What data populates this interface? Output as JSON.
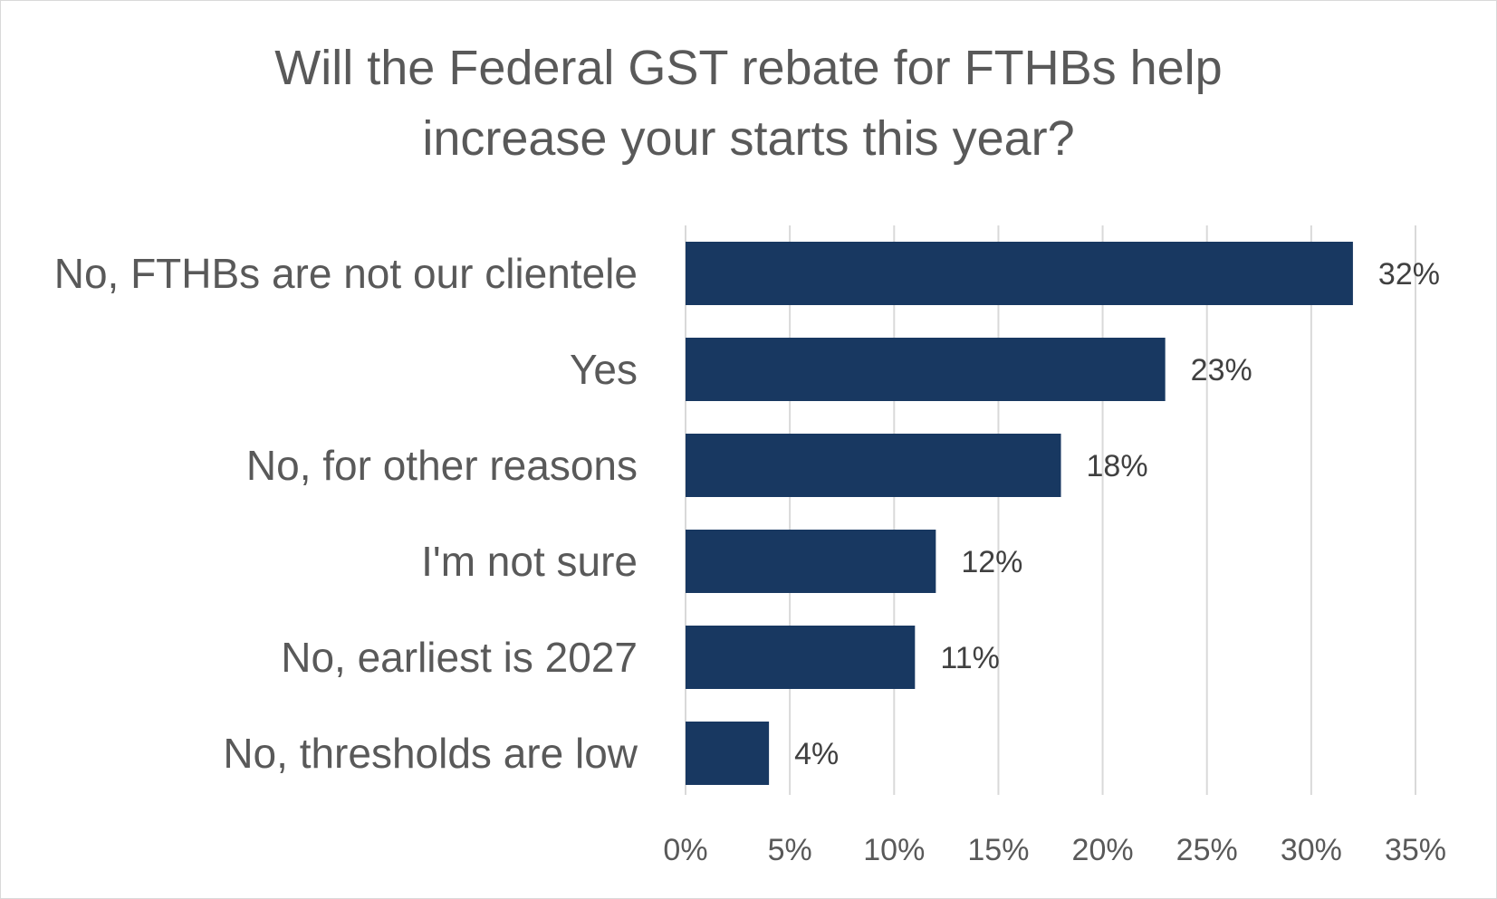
{
  "chart_data": {
    "type": "bar",
    "orientation": "horizontal",
    "title_lines": [
      "Will the Federal GST rebate for FTHBs help",
      "increase your starts this year?"
    ],
    "categories": [
      "No, FTHBs are not our clientele",
      "Yes",
      "No, for other reasons",
      "I'm not sure",
      "No, earliest is 2027",
      "No, thresholds are low"
    ],
    "values": [
      32,
      23,
      18,
      12,
      11,
      4
    ],
    "value_labels": [
      "32%",
      "23%",
      "18%",
      "12%",
      "11%",
      "4%"
    ],
    "xlim": [
      0,
      35
    ],
    "xticks": [
      0,
      5,
      10,
      15,
      20,
      25,
      30,
      35
    ],
    "xtick_labels": [
      "0%",
      "5%",
      "10%",
      "15%",
      "20%",
      "25%",
      "30%",
      "35%"
    ],
    "xlabel": "",
    "ylabel": "",
    "grid": "vertical",
    "legend": "none",
    "bar_color": "#183861",
    "grid_color": "#d9d9d9"
  }
}
